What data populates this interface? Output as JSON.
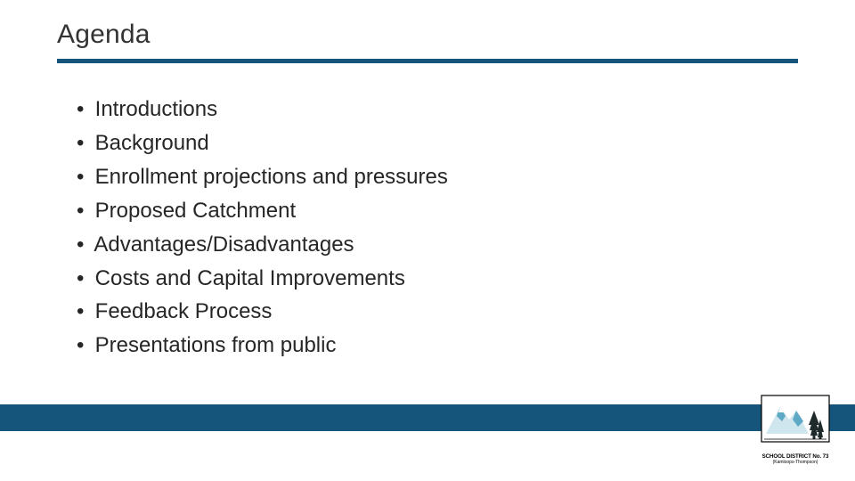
{
  "colors": {
    "accent": "#15557b",
    "text": "#262626",
    "title": "#333333",
    "bg": "#ffffff",
    "logo_mountain": "#cfe6ee",
    "logo_mountain_shadow": "#5ea9c6",
    "logo_tree": "#1f2a2a",
    "logo_border": "#000000"
  },
  "title": "Agenda",
  "bullets": [
    "Introductions",
    "Background",
    "Enrollment projections and pressures",
    "Proposed Catchment",
    "Advantages/Disadvantages",
    "Costs and Capital Improvements",
    "Feedback Process",
    "Presentations from public"
  ],
  "logo": {
    "line1": "SCHOOL DISTRICT No. 73",
    "line2": "(Kamloops-Thompson)"
  },
  "layout": {
    "title_fontsize": 30,
    "bullet_fontsize": 24,
    "underline_height": 5,
    "footer_bar_height": 30
  }
}
